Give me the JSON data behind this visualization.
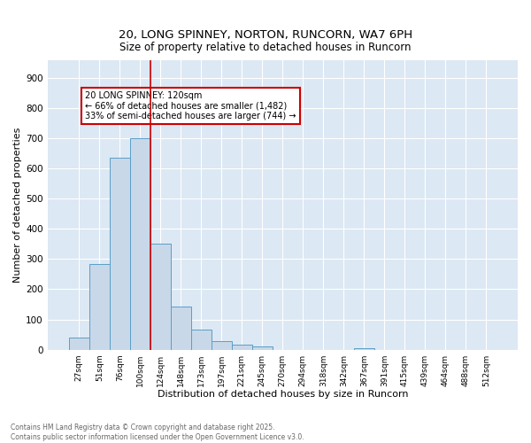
{
  "title1": "20, LONG SPINNEY, NORTON, RUNCORN, WA7 6PH",
  "title2": "Size of property relative to detached houses in Runcorn",
  "xlabel": "Distribution of detached houses by size in Runcorn",
  "ylabel": "Number of detached properties",
  "bar_labels": [
    "27sqm",
    "51sqm",
    "76sqm",
    "100sqm",
    "124sqm",
    "148sqm",
    "173sqm",
    "197sqm",
    "221sqm",
    "245sqm",
    "270sqm",
    "294sqm",
    "318sqm",
    "342sqm",
    "367sqm",
    "391sqm",
    "415sqm",
    "439sqm",
    "464sqm",
    "488sqm",
    "512sqm"
  ],
  "bar_values": [
    40,
    283,
    635,
    700,
    352,
    143,
    65,
    28,
    15,
    10,
    0,
    0,
    0,
    0,
    5,
    0,
    0,
    0,
    0,
    0,
    0
  ],
  "bar_color": "#c8d8e8",
  "bar_edge_color": "#5a9fc8",
  "bg_color": "#dce8f4",
  "vline_color": "#cc0000",
  "annotation_text": "20 LONG SPINNEY: 120sqm\n← 66% of detached houses are smaller (1,482)\n33% of semi-detached houses are larger (744) →",
  "annotation_box_color": "#cc0000",
  "footer_text": "Contains HM Land Registry data © Crown copyright and database right 2025.\nContains public sector information licensed under the Open Government Licence v3.0.",
  "ylim": [
    0,
    960
  ],
  "yticks": [
    0,
    100,
    200,
    300,
    400,
    500,
    600,
    700,
    800,
    900
  ]
}
